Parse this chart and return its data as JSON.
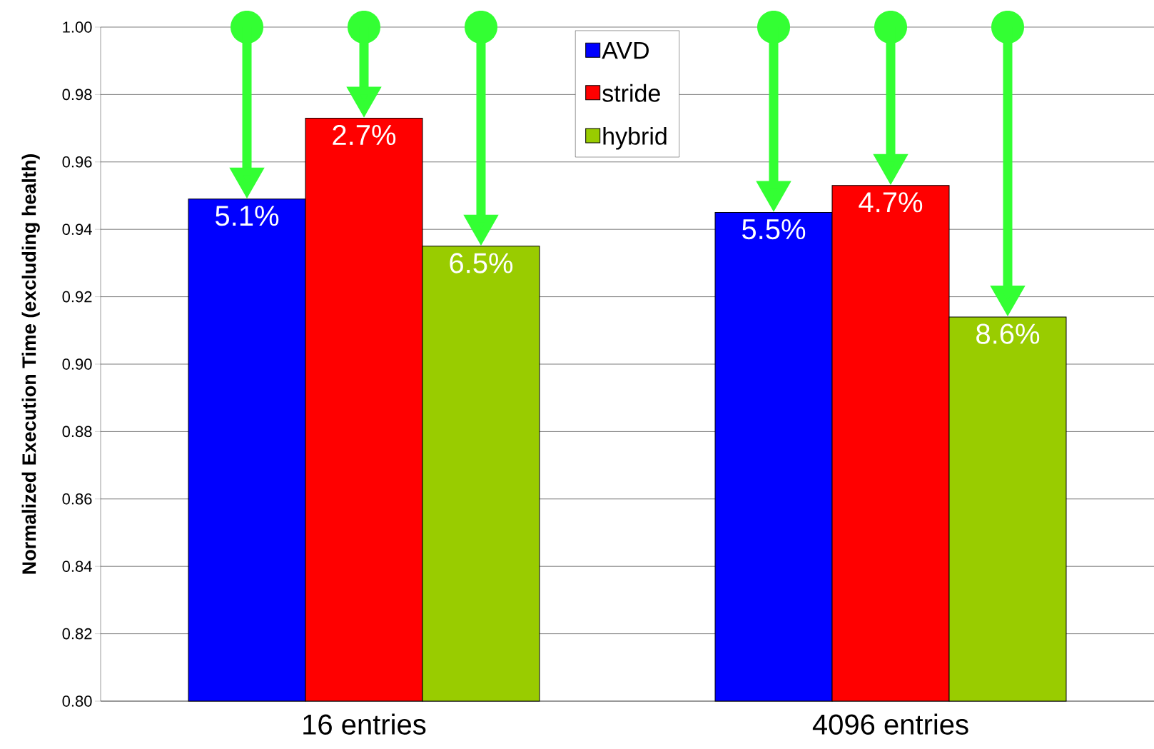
{
  "chart_data": {
    "type": "bar",
    "ylabel": "Normalized Execution Time (excluding health)",
    "categories": [
      "16 entries",
      "4096 entries"
    ],
    "series": [
      {
        "name": "AVD",
        "color": "#0000ff",
        "values": [
          0.949,
          0.945
        ]
      },
      {
        "name": "stride",
        "color": "#ff0000",
        "values": [
          0.973,
          0.953
        ]
      },
      {
        "name": "hybrid",
        "color": "#99cc00",
        "values": [
          0.935,
          0.914
        ]
      }
    ],
    "annotations": [
      "5.1%",
      "5.5%",
      "2.7%",
      "4.7%",
      "6.5%",
      "8.6%"
    ],
    "ylim": [
      0.8,
      1.0
    ],
    "yticks": [
      {
        "value": 0.8,
        "label": "0.80"
      },
      {
        "value": 0.82,
        "label": "0.82"
      },
      {
        "value": 0.84,
        "label": "0.84"
      },
      {
        "value": 0.86,
        "label": "0.86"
      },
      {
        "value": 0.88,
        "label": "0.88"
      },
      {
        "value": 0.9,
        "label": "0.90"
      },
      {
        "value": 0.92,
        "label": "0.92"
      },
      {
        "value": 0.94,
        "label": "0.94"
      },
      {
        "value": 0.96,
        "label": "0.96"
      },
      {
        "value": 0.98,
        "label": "0.98"
      },
      {
        "value": 1.0,
        "label": "1.00"
      }
    ],
    "grid": "y",
    "legend": "top"
  }
}
